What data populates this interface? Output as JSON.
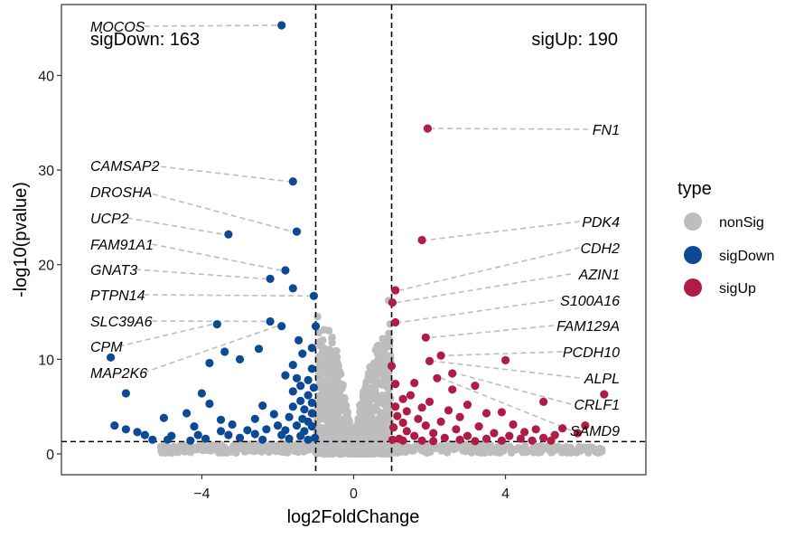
{
  "chart_data": {
    "type": "scatter",
    "subtype": "volcano",
    "xlabel": "log2FoldChange",
    "ylabel": "-log10(pvalue)",
    "xlim": [
      -7.7,
      7.7
    ],
    "ylim": [
      -2.2,
      47.5
    ],
    "xticks": [
      -4,
      0,
      4
    ],
    "yticks": [
      0,
      10,
      20,
      30,
      40
    ],
    "grid": false,
    "thresholds": {
      "fold_change": [
        -1,
        1
      ],
      "pvalue_line": 1.3
    },
    "colors": {
      "nonSig": "#bdbdbd",
      "sigDown": "#0c4a96",
      "sigUp": "#b01c44"
    },
    "counts": {
      "sigDown": "sigDown: 163",
      "sigUp": "sigUp: 190"
    },
    "legend": {
      "title": "type",
      "position": "right",
      "entries": [
        "nonSig",
        "sigDown",
        "sigUp"
      ]
    },
    "series": [
      {
        "name": "sigDown",
        "points": [
          [
            -1.9,
            45.3
          ],
          [
            -1.6,
            28.8
          ],
          [
            -3.3,
            23.2
          ],
          [
            -1.5,
            23.5
          ],
          [
            -1.8,
            19.4
          ],
          [
            -2.2,
            18.5
          ],
          [
            -1.6,
            17.5
          ],
          [
            -1.05,
            16.7
          ],
          [
            -3.6,
            13.7
          ],
          [
            -2.2,
            14.0
          ],
          [
            -1.9,
            13.5
          ],
          [
            -1.0,
            13.5
          ],
          [
            -1.45,
            12.0
          ],
          [
            -2.5,
            11.1
          ],
          [
            -1.1,
            11.2
          ],
          [
            -3.4,
            10.8
          ],
          [
            -1.35,
            10.6
          ],
          [
            -6.4,
            10.2
          ],
          [
            -3.0,
            10.0
          ],
          [
            -3.8,
            9.6
          ],
          [
            -1.6,
            9.4
          ],
          [
            -1.1,
            9.0
          ],
          [
            -1.8,
            8.3
          ],
          [
            -1.5,
            8.0
          ],
          [
            -1.2,
            7.8
          ],
          [
            -1.4,
            7.2
          ],
          [
            -1.05,
            7.0
          ],
          [
            -1.6,
            6.6
          ],
          [
            -1.2,
            6.2
          ],
          [
            -6.0,
            6.4
          ],
          [
            -4.0,
            6.4
          ],
          [
            -1.4,
            5.6
          ],
          [
            -1.1,
            5.4
          ],
          [
            -3.8,
            5.3
          ],
          [
            -1.6,
            5.0
          ],
          [
            -2.4,
            5.1
          ],
          [
            -1.3,
            4.7
          ],
          [
            -4.4,
            4.3
          ],
          [
            -1.1,
            4.3
          ],
          [
            -2.1,
            4.2
          ],
          [
            -1.7,
            3.9
          ],
          [
            -1.35,
            3.7
          ],
          [
            -5.0,
            3.8
          ],
          [
            -3.5,
            3.6
          ],
          [
            -2.6,
            3.7
          ],
          [
            -1.2,
            3.4
          ],
          [
            -6.3,
            3.0
          ],
          [
            -4.2,
            2.9
          ],
          [
            -3.2,
            3.1
          ],
          [
            -2.0,
            3.0
          ],
          [
            -1.5,
            3.0
          ],
          [
            -1.1,
            2.9
          ],
          [
            -6.0,
            2.6
          ],
          [
            -5.7,
            2.3
          ],
          [
            -3.5,
            2.4
          ],
          [
            -2.8,
            2.5
          ],
          [
            -2.3,
            2.6
          ],
          [
            -1.8,
            2.5
          ],
          [
            -1.3,
            2.4
          ],
          [
            -5.5,
            2.0
          ],
          [
            -4.8,
            1.9
          ],
          [
            -4.1,
            2.0
          ],
          [
            -3.3,
            2.0
          ],
          [
            -2.6,
            2.1
          ],
          [
            -1.9,
            2.0
          ],
          [
            -1.4,
            1.9
          ],
          [
            -5.3,
            1.5
          ],
          [
            -4.9,
            1.5
          ],
          [
            -4.3,
            1.4
          ],
          [
            -3.9,
            1.6
          ],
          [
            -3.0,
            1.7
          ],
          [
            -2.4,
            1.5
          ],
          [
            -1.7,
            1.6
          ],
          [
            -1.2,
            1.5
          ],
          [
            -1.02,
            1.7
          ]
        ]
      },
      {
        "name": "sigUp",
        "points": [
          [
            1.95,
            34.4
          ],
          [
            1.8,
            22.6
          ],
          [
            1.1,
            17.3
          ],
          [
            1.02,
            16.0
          ],
          [
            1.1,
            13.9
          ],
          [
            1.9,
            12.3
          ],
          [
            2.3,
            10.4
          ],
          [
            4.0,
            9.9
          ],
          [
            2.0,
            9.8
          ],
          [
            1.0,
            9.3
          ],
          [
            2.6,
            8.5
          ],
          [
            2.2,
            8.0
          ],
          [
            3.2,
            7.2
          ],
          [
            1.6,
            7.5
          ],
          [
            1.1,
            7.4
          ],
          [
            2.6,
            6.8
          ],
          [
            1.5,
            6.2
          ],
          [
            6.6,
            6.3
          ],
          [
            1.3,
            5.8
          ],
          [
            2.0,
            5.5
          ],
          [
            3.0,
            5.2
          ],
          [
            1.1,
            5.0
          ],
          [
            5.0,
            5.5
          ],
          [
            1.8,
            4.9
          ],
          [
            2.5,
            4.6
          ],
          [
            1.4,
            4.5
          ],
          [
            3.5,
            4.3
          ],
          [
            3.9,
            4.4
          ],
          [
            1.15,
            4.0
          ],
          [
            2.8,
            3.9
          ],
          [
            6.1,
            3.0
          ],
          [
            1.7,
            3.7
          ],
          [
            4.2,
            3.1
          ],
          [
            1.3,
            3.3
          ],
          [
            2.3,
            3.4
          ],
          [
            5.5,
            2.7
          ],
          [
            4.8,
            2.6
          ],
          [
            3.3,
            2.9
          ],
          [
            1.9,
            3.0
          ],
          [
            1.05,
            2.8
          ],
          [
            2.7,
            2.6
          ],
          [
            4.5,
            2.3
          ],
          [
            5.9,
            2.2
          ],
          [
            3.7,
            2.2
          ],
          [
            1.4,
            2.4
          ],
          [
            2.1,
            2.2
          ],
          [
            5.3,
            2.0
          ],
          [
            4.1,
            1.9
          ],
          [
            3.0,
            1.9
          ],
          [
            1.6,
            1.9
          ],
          [
            5.0,
            1.7
          ],
          [
            4.4,
            1.6
          ],
          [
            3.5,
            1.6
          ],
          [
            2.4,
            1.7
          ],
          [
            1.2,
            1.6
          ],
          [
            1.02,
            1.5
          ],
          [
            5.2,
            1.4
          ],
          [
            4.7,
            1.4
          ],
          [
            3.9,
            1.4
          ],
          [
            2.8,
            1.5
          ],
          [
            1.8,
            1.4
          ],
          [
            1.3,
            1.4
          ],
          [
            3.2,
            1.35
          ],
          [
            2.1,
            1.35
          ]
        ]
      }
    ],
    "nonsig_shape": {
      "left_ridge": [
        [
          -0.95,
          11.0
        ],
        [
          -0.8,
          13.6
        ],
        [
          -0.55,
          12.8
        ],
        [
          -0.45,
          11.0
        ],
        [
          -0.35,
          9.0
        ],
        [
          -0.25,
          6.8
        ],
        [
          -0.15,
          4.6
        ],
        [
          0.0,
          1.1
        ],
        [
          0.15,
          5.2
        ],
        [
          0.25,
          6.4
        ],
        [
          0.35,
          9.0
        ],
        [
          0.5,
          9.6
        ],
        [
          0.6,
          11.5
        ],
        [
          0.9,
          12.8
        ],
        [
          0.95,
          14.5
        ]
      ],
      "annotations": [
        "outside points",
        "base band"
      ]
    },
    "annotations": [
      {
        "label": "MOCOS",
        "x": -1.9,
        "y": 45.3,
        "side": "left",
        "row": 0
      },
      {
        "label": "CAMSAP2",
        "x": -1.6,
        "y": 28.8,
        "side": "left",
        "row": 1
      },
      {
        "label": "DROSHA",
        "x": -1.5,
        "y": 23.5,
        "side": "left",
        "row": 2
      },
      {
        "label": "UCP2",
        "x": -3.3,
        "y": 23.2,
        "side": "left",
        "row": 3
      },
      {
        "label": "FAM91A1",
        "x": -1.8,
        "y": 19.4,
        "side": "left",
        "row": 4
      },
      {
        "label": "GNAT3",
        "x": -2.2,
        "y": 18.5,
        "side": "left",
        "row": 5
      },
      {
        "label": "PTPN14",
        "x": -1.05,
        "y": 16.7,
        "side": "left",
        "row": 6
      },
      {
        "label": "SLC39A6",
        "x": -2.2,
        "y": 14.0,
        "side": "left",
        "row": 7
      },
      {
        "label": "CPM",
        "x": -3.6,
        "y": 13.7,
        "side": "left",
        "row": 8
      },
      {
        "label": "MAP2K6",
        "x": -1.9,
        "y": 13.5,
        "side": "left",
        "row": 9
      },
      {
        "label": "FN1",
        "x": 1.95,
        "y": 34.4,
        "side": "right",
        "row": 0
      },
      {
        "label": "PDK4",
        "x": 1.8,
        "y": 22.6,
        "side": "right",
        "row": 1
      },
      {
        "label": "CDH2",
        "x": 1.1,
        "y": 17.3,
        "side": "right",
        "row": 2
      },
      {
        "label": "AZIN1",
        "x": 1.02,
        "y": 16.0,
        "side": "right",
        "row": 3
      },
      {
        "label": "S100A16",
        "x": 1.1,
        "y": 13.9,
        "side": "right",
        "row": 4
      },
      {
        "label": "FAM129A",
        "x": 1.9,
        "y": 12.3,
        "side": "right",
        "row": 5
      },
      {
        "label": "PCDH10",
        "x": 2.3,
        "y": 10.4,
        "side": "right",
        "row": 6
      },
      {
        "label": "ALPL",
        "x": 2.0,
        "y": 9.8,
        "side": "right",
        "row": 7
      },
      {
        "label": "CRLF1",
        "x": 2.6,
        "y": 8.5,
        "side": "right",
        "row": 8
      },
      {
        "label": "SAMD9",
        "x": 2.2,
        "y": 8.0,
        "side": "right",
        "row": 9
      }
    ]
  }
}
